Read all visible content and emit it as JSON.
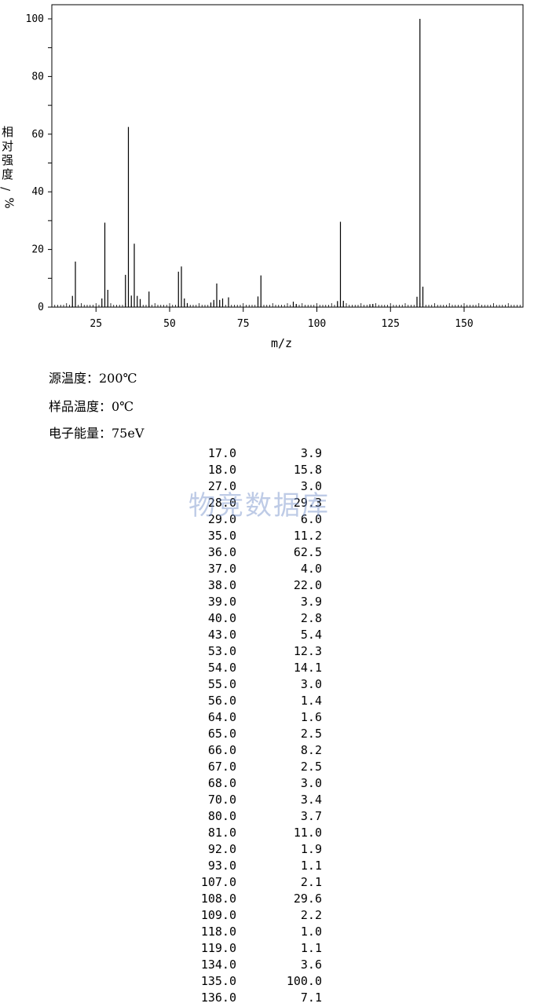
{
  "chart_data": {
    "type": "bar",
    "xlabel": "m/z",
    "ylabel": "相对强度/%",
    "xlim": [
      10,
      170
    ],
    "ylim": [
      0,
      100
    ],
    "x_ticks": [
      25,
      50,
      75,
      100,
      125,
      150
    ],
    "y_ticks": [
      0,
      20,
      40,
      60,
      80,
      100
    ],
    "x": [
      17,
      18,
      27,
      28,
      29,
      35,
      36,
      37,
      38,
      39,
      40,
      43,
      53,
      54,
      55,
      56,
      64,
      65,
      66,
      67,
      68,
      70,
      80,
      81,
      92,
      93,
      107,
      108,
      109,
      118,
      119,
      134,
      135,
      136
    ],
    "values": [
      3.9,
      15.8,
      3.0,
      29.3,
      6.0,
      11.2,
      62.5,
      4.0,
      22.0,
      3.9,
      2.8,
      5.4,
      12.3,
      14.1,
      3.0,
      1.4,
      1.6,
      2.5,
      8.2,
      2.5,
      3.0,
      3.4,
      3.7,
      11.0,
      1.9,
      1.1,
      2.1,
      29.6,
      2.2,
      1.0,
      1.1,
      3.6,
      100.0,
      7.1
    ],
    "grid": false
  },
  "conditions": {
    "source_temp": "源温度：200℃",
    "sample_temp": "样品温度：0℃",
    "electron_energy": "电子能量：75eV"
  },
  "watermark": "物竞数据库",
  "peak_table": [
    {
      "mz": "17.0",
      "intensity": "3.9"
    },
    {
      "mz": "18.0",
      "intensity": "15.8"
    },
    {
      "mz": "27.0",
      "intensity": "3.0"
    },
    {
      "mz": "28.0",
      "intensity": "29.3"
    },
    {
      "mz": "29.0",
      "intensity": "6.0"
    },
    {
      "mz": "35.0",
      "intensity": "11.2"
    },
    {
      "mz": "36.0",
      "intensity": "62.5"
    },
    {
      "mz": "37.0",
      "intensity": "4.0"
    },
    {
      "mz": "38.0",
      "intensity": "22.0"
    },
    {
      "mz": "39.0",
      "intensity": "3.9"
    },
    {
      "mz": "40.0",
      "intensity": "2.8"
    },
    {
      "mz": "43.0",
      "intensity": "5.4"
    },
    {
      "mz": "53.0",
      "intensity": "12.3"
    },
    {
      "mz": "54.0",
      "intensity": "14.1"
    },
    {
      "mz": "55.0",
      "intensity": "3.0"
    },
    {
      "mz": "56.0",
      "intensity": "1.4"
    },
    {
      "mz": "64.0",
      "intensity": "1.6"
    },
    {
      "mz": "65.0",
      "intensity": "2.5"
    },
    {
      "mz": "66.0",
      "intensity": "8.2"
    },
    {
      "mz": "67.0",
      "intensity": "2.5"
    },
    {
      "mz": "68.0",
      "intensity": "3.0"
    },
    {
      "mz": "70.0",
      "intensity": "3.4"
    },
    {
      "mz": "80.0",
      "intensity": "3.7"
    },
    {
      "mz": "81.0",
      "intensity": "11.0"
    },
    {
      "mz": "92.0",
      "intensity": "1.9"
    },
    {
      "mz": "93.0",
      "intensity": "1.1"
    },
    {
      "mz": "107.0",
      "intensity": "2.1"
    },
    {
      "mz": "108.0",
      "intensity": "29.6"
    },
    {
      "mz": "109.0",
      "intensity": "2.2"
    },
    {
      "mz": "118.0",
      "intensity": "1.0"
    },
    {
      "mz": "119.0",
      "intensity": "1.1"
    },
    {
      "mz": "134.0",
      "intensity": "3.6"
    },
    {
      "mz": "135.0",
      "intensity": "100.0"
    },
    {
      "mz": "136.0",
      "intensity": "7.1"
    }
  ]
}
